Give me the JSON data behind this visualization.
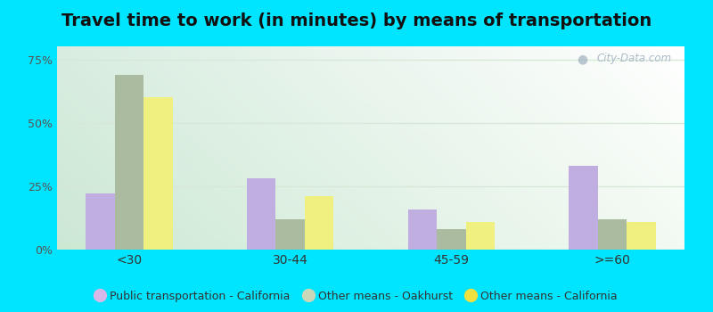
{
  "title": "Travel time to work (in minutes) by means of transportation",
  "categories": [
    "<30",
    "30-44",
    "45-59",
    ">=60"
  ],
  "series": [
    {
      "label": "Public transportation - California",
      "color": "#c0aee0",
      "values": [
        22,
        28,
        16,
        33
      ]
    },
    {
      "label": "Other means - Oakhurst",
      "color": "#aabba0",
      "values": [
        69,
        12,
        8,
        12
      ]
    },
    {
      "label": "Other means - California",
      "color": "#f0f080",
      "values": [
        60,
        21,
        11,
        11
      ]
    }
  ],
  "ylim": [
    0,
    80
  ],
  "yticks": [
    0,
    25,
    50,
    75
  ],
  "ytick_labels": [
    "0%",
    "25%",
    "50%",
    "75%"
  ],
  "bg_color_topleft": "#d8ede0",
  "bg_color_topright": "#f8f8f8",
  "bg_color_bottomleft": "#c8e8d0",
  "bg_color_bottomright": "#f0f8f0",
  "outer_background": "#00e5ff",
  "title_fontsize": 14,
  "bar_width": 0.18,
  "grid_color": "#d8e8d8",
  "watermark_text": "City-Data.com",
  "legend_marker_color_0": "#d8b8e8",
  "legend_marker_color_1": "#c8d8b8",
  "legend_marker_color_2": "#f0e040"
}
